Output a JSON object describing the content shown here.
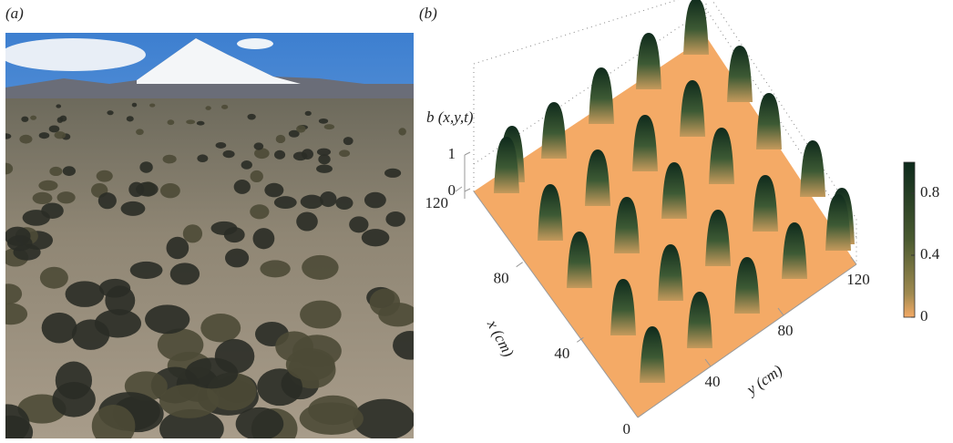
{
  "panels": {
    "a": {
      "label": "(a)"
    },
    "b": {
      "label": "(b)",
      "z_label": "b (x,y,t)",
      "x_label": "x (cm)",
      "y_label": "y (cm)",
      "x_lim": [
        0,
        120
      ],
      "y_lim": [
        0,
        120
      ],
      "z_lim": [
        0,
        1
      ],
      "x_ticks": [
        0,
        40,
        80,
        120
      ],
      "y_ticks": [
        40,
        80,
        120
      ],
      "z_ticks": [
        0,
        1
      ],
      "colorbar": {
        "lim": [
          0,
          1
        ],
        "ticks": [
          0,
          0.4,
          0.8
        ]
      }
    }
  }
}
